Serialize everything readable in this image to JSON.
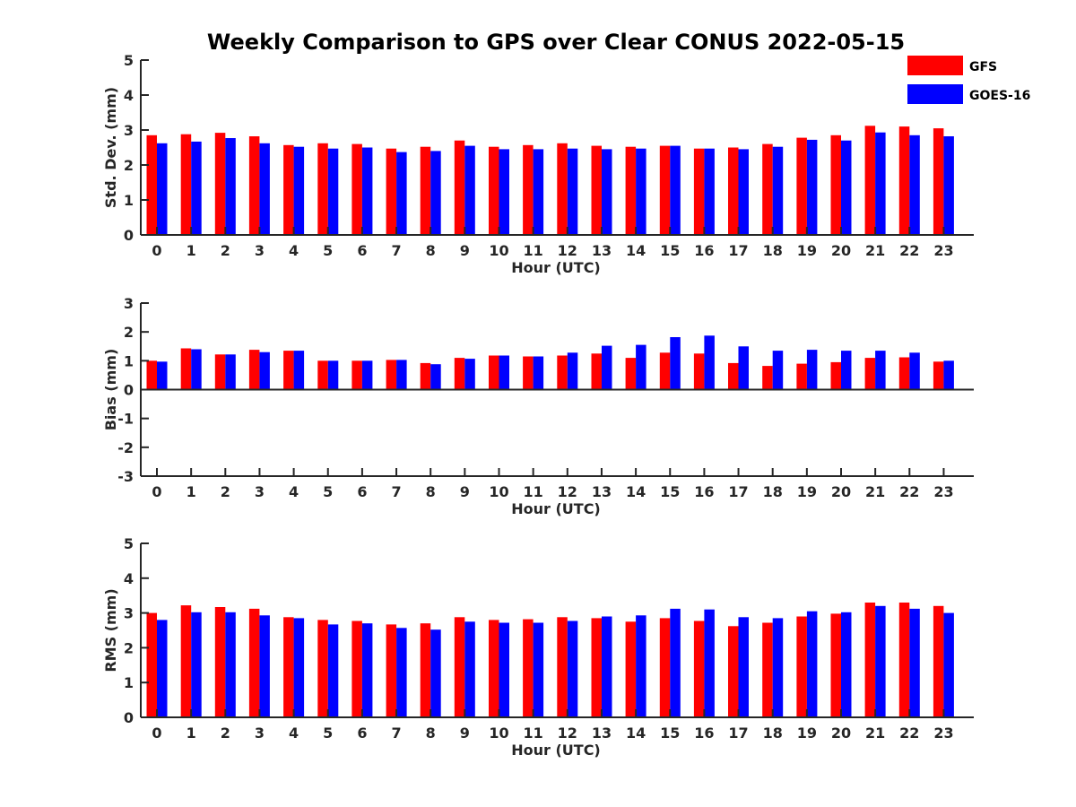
{
  "title": "Weekly Comparison to GPS over Clear CONUS 2022-05-15",
  "legend": [
    {
      "name": "GFS",
      "color": "#ff0000"
    },
    {
      "name": "GOES-16",
      "color": "#0000ff"
    }
  ],
  "chart_data": [
    {
      "type": "bar",
      "ylabel": "Std. Dev. (mm)",
      "xlabel": "Hour (UTC)",
      "ylim": [
        0,
        5
      ],
      "yticks": [
        0,
        1,
        2,
        3,
        4,
        5
      ],
      "categories": [
        "0",
        "1",
        "2",
        "3",
        "4",
        "5",
        "6",
        "7",
        "8",
        "9",
        "10",
        "11",
        "12",
        "13",
        "14",
        "15",
        "16",
        "17",
        "18",
        "19",
        "20",
        "21",
        "22",
        "23"
      ],
      "series": [
        {
          "name": "GFS",
          "values": [
            2.85,
            2.88,
            2.92,
            2.82,
            2.57,
            2.62,
            2.6,
            2.47,
            2.52,
            2.7,
            2.52,
            2.57,
            2.62,
            2.55,
            2.52,
            2.55,
            2.47,
            2.5,
            2.6,
            2.78,
            2.85,
            3.12,
            3.1,
            3.05
          ]
        },
        {
          "name": "GOES-16",
          "values": [
            2.62,
            2.67,
            2.77,
            2.62,
            2.52,
            2.47,
            2.5,
            2.37,
            2.4,
            2.55,
            2.45,
            2.45,
            2.47,
            2.45,
            2.47,
            2.55,
            2.47,
            2.45,
            2.52,
            2.72,
            2.7,
            2.93,
            2.85,
            2.82
          ]
        }
      ]
    },
    {
      "type": "bar",
      "ylabel": "Bias (mm)",
      "xlabel": "Hour (UTC)",
      "ylim": [
        -3,
        3
      ],
      "yticks": [
        -3,
        -2,
        -1,
        0,
        1,
        2,
        3
      ],
      "categories": [
        "0",
        "1",
        "2",
        "3",
        "4",
        "5",
        "6",
        "7",
        "8",
        "9",
        "10",
        "11",
        "12",
        "13",
        "14",
        "15",
        "16",
        "17",
        "18",
        "19",
        "20",
        "21",
        "22",
        "23"
      ],
      "series": [
        {
          "name": "GFS",
          "values": [
            1.0,
            1.43,
            1.22,
            1.38,
            1.35,
            1.0,
            1.0,
            1.03,
            0.92,
            1.1,
            1.18,
            1.15,
            1.18,
            1.25,
            1.1,
            1.28,
            1.25,
            0.92,
            0.82,
            0.9,
            0.95,
            1.1,
            1.12,
            0.97
          ]
        },
        {
          "name": "GOES-16",
          "values": [
            0.97,
            1.4,
            1.22,
            1.3,
            1.35,
            1.0,
            1.0,
            1.03,
            0.88,
            1.07,
            1.18,
            1.15,
            1.28,
            1.52,
            1.55,
            1.82,
            1.87,
            1.5,
            1.35,
            1.38,
            1.35,
            1.35,
            1.28,
            1.0
          ]
        }
      ]
    },
    {
      "type": "bar",
      "ylabel": "RMS (mm)",
      "xlabel": "Hour (UTC)",
      "ylim": [
        0,
        5
      ],
      "yticks": [
        0,
        1,
        2,
        3,
        4,
        5
      ],
      "categories": [
        "0",
        "1",
        "2",
        "3",
        "4",
        "5",
        "6",
        "7",
        "8",
        "9",
        "10",
        "11",
        "12",
        "13",
        "14",
        "15",
        "16",
        "17",
        "18",
        "19",
        "20",
        "21",
        "22",
        "23"
      ],
      "series": [
        {
          "name": "GFS",
          "values": [
            3.0,
            3.22,
            3.17,
            3.12,
            2.88,
            2.8,
            2.77,
            2.67,
            2.7,
            2.88,
            2.8,
            2.82,
            2.88,
            2.85,
            2.75,
            2.85,
            2.77,
            2.62,
            2.72,
            2.9,
            2.98,
            3.3,
            3.3,
            3.2
          ]
        },
        {
          "name": "GOES-16",
          "values": [
            2.8,
            3.02,
            3.02,
            2.93,
            2.85,
            2.67,
            2.7,
            2.57,
            2.52,
            2.75,
            2.72,
            2.72,
            2.77,
            2.9,
            2.93,
            3.12,
            3.1,
            2.88,
            2.85,
            3.05,
            3.02,
            3.2,
            3.12,
            3.0
          ]
        }
      ]
    }
  ]
}
